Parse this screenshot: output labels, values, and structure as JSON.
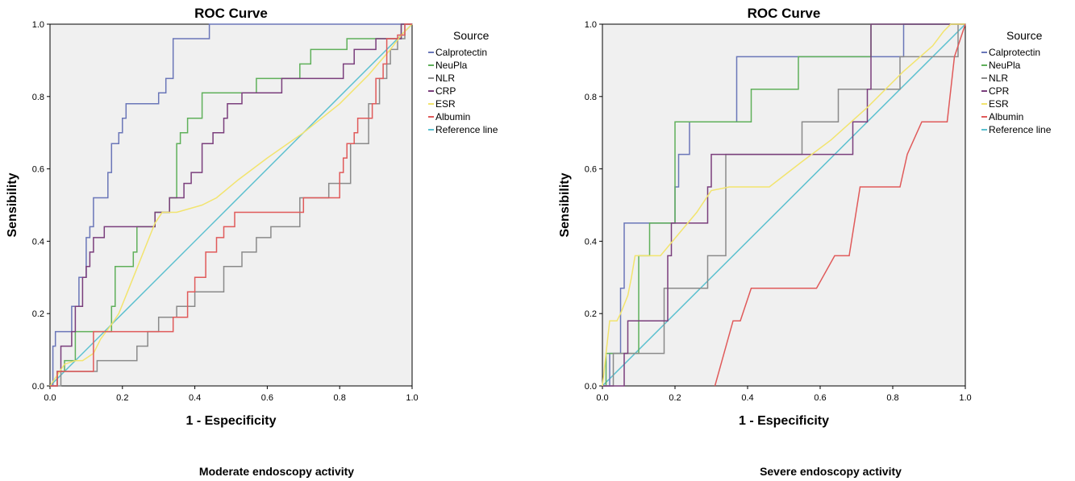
{
  "chart_data": [
    {
      "type": "line",
      "title": "ROC Curve",
      "xlabel": "1 - Especificity",
      "ylabel": "Sensibility",
      "caption": "Moderate endoscopy activity",
      "xlim": [
        0,
        1
      ],
      "ylim": [
        0,
        1
      ],
      "xticks": [
        "0.0",
        "0.2",
        "0.4",
        "0.6",
        "0.8",
        "1.0"
      ],
      "yticks": [
        "0.0",
        "0.2",
        "0.4",
        "0.6",
        "0.8",
        "1.0"
      ],
      "grid": false,
      "legend": {
        "title": "Source",
        "position": "right",
        "entries": [
          "Calprotectin",
          "NeuPla",
          "NLR",
          "CRP",
          "ESR",
          "Albumin",
          "Reference line"
        ]
      },
      "series": [
        {
          "name": "Calprotectin",
          "color": "#6a76b8",
          "x": [
            0,
            0.008,
            0.008,
            0.015,
            0.015,
            0.06,
            0.06,
            0.08,
            0.08,
            0.1,
            0.1,
            0.11,
            0.11,
            0.12,
            0.12,
            0.16,
            0.16,
            0.17,
            0.17,
            0.19,
            0.19,
            0.2,
            0.2,
            0.21,
            0.21,
            0.22,
            0.22,
            0.3,
            0.3,
            0.32,
            0.32,
            0.34,
            0.34,
            0.36,
            0.36,
            0.44,
            0.44,
            1.0
          ],
          "y": [
            0,
            0,
            0.11,
            0.11,
            0.15,
            0.15,
            0.22,
            0.22,
            0.3,
            0.3,
            0.41,
            0.41,
            0.44,
            0.44,
            0.52,
            0.52,
            0.59,
            0.59,
            0.67,
            0.67,
            0.7,
            0.7,
            0.74,
            0.74,
            0.78,
            0.78,
            0.78,
            0.78,
            0.81,
            0.81,
            0.85,
            0.85,
            0.96,
            0.96,
            0.96,
            0.96,
            1.0,
            1.0
          ]
        },
        {
          "name": "NeuPla",
          "color": "#5fb05a",
          "x": [
            0,
            0.02,
            0.02,
            0.04,
            0.04,
            0.07,
            0.07,
            0.17,
            0.17,
            0.18,
            0.18,
            0.23,
            0.23,
            0.24,
            0.24,
            0.29,
            0.29,
            0.33,
            0.33,
            0.35,
            0.35,
            0.36,
            0.36,
            0.37,
            0.37,
            0.38,
            0.38,
            0.42,
            0.42,
            0.57,
            0.57,
            0.69,
            0.69,
            0.72,
            0.72,
            0.82,
            0.82,
            0.94,
            0.94,
            0.97,
            0.97,
            1.0
          ],
          "y": [
            0,
            0,
            0.04,
            0.04,
            0.07,
            0.07,
            0.15,
            0.15,
            0.22,
            0.22,
            0.33,
            0.33,
            0.37,
            0.37,
            0.44,
            0.44,
            0.48,
            0.48,
            0.52,
            0.52,
            0.67,
            0.67,
            0.7,
            0.7,
            0.7,
            0.7,
            0.74,
            0.74,
            0.81,
            0.81,
            0.85,
            0.85,
            0.89,
            0.89,
            0.93,
            0.93,
            0.96,
            0.96,
            0.96,
            0.96,
            1.0,
            1.0
          ]
        },
        {
          "name": "NLR",
          "color": "#8a8a8a",
          "x": [
            0,
            0.03,
            0.03,
            0.05,
            0.05,
            0.06,
            0.06,
            0.13,
            0.13,
            0.17,
            0.17,
            0.24,
            0.24,
            0.27,
            0.27,
            0.29,
            0.29,
            0.3,
            0.3,
            0.33,
            0.33,
            0.35,
            0.35,
            0.4,
            0.4,
            0.48,
            0.48,
            0.53,
            0.53,
            0.57,
            0.57,
            0.61,
            0.61,
            0.69,
            0.69,
            0.77,
            0.77,
            0.83,
            0.83,
            0.88,
            0.88,
            0.91,
            0.91,
            0.93,
            0.93,
            0.94,
            0.94,
            0.96,
            0.96,
            0.98,
            0.98,
            1.0
          ],
          "y": [
            0,
            0,
            0.04,
            0.04,
            0.04,
            0.04,
            0.04,
            0.04,
            0.07,
            0.07,
            0.07,
            0.07,
            0.11,
            0.11,
            0.15,
            0.15,
            0.15,
            0.15,
            0.19,
            0.19,
            0.19,
            0.19,
            0.22,
            0.22,
            0.26,
            0.26,
            0.33,
            0.33,
            0.37,
            0.37,
            0.41,
            0.41,
            0.44,
            0.44,
            0.52,
            0.52,
            0.56,
            0.56,
            0.67,
            0.67,
            0.78,
            0.78,
            0.85,
            0.85,
            0.89,
            0.89,
            0.93,
            0.93,
            0.96,
            0.96,
            1.0,
            1.0
          ]
        },
        {
          "name": "CRP",
          "color": "#7a3e7c",
          "x": [
            0,
            0.02,
            0.02,
            0.03,
            0.03,
            0.06,
            0.06,
            0.07,
            0.07,
            0.09,
            0.09,
            0.1,
            0.1,
            0.11,
            0.11,
            0.12,
            0.12,
            0.14,
            0.14,
            0.15,
            0.15,
            0.16,
            0.16,
            0.29,
            0.29,
            0.33,
            0.33,
            0.35,
            0.35,
            0.37,
            0.37,
            0.39,
            0.39,
            0.42,
            0.42,
            0.45,
            0.45,
            0.46,
            0.46,
            0.48,
            0.48,
            0.49,
            0.49,
            0.53,
            0.53,
            0.55,
            0.55,
            0.57,
            0.57,
            0.64,
            0.64,
            0.69,
            0.69,
            0.81,
            0.81,
            0.83,
            0.83,
            0.84,
            0.84,
            0.9,
            0.9,
            0.97,
            0.97,
            1.0
          ],
          "y": [
            0,
            0,
            0.04,
            0.04,
            0.11,
            0.11,
            0.15,
            0.15,
            0.22,
            0.22,
            0.3,
            0.3,
            0.33,
            0.33,
            0.37,
            0.37,
            0.41,
            0.41,
            0.41,
            0.41,
            0.44,
            0.44,
            0.44,
            0.44,
            0.48,
            0.48,
            0.52,
            0.52,
            0.52,
            0.52,
            0.56,
            0.56,
            0.59,
            0.59,
            0.67,
            0.67,
            0.7,
            0.7,
            0.7,
            0.7,
            0.74,
            0.74,
            0.78,
            0.78,
            0.81,
            0.81,
            0.81,
            0.81,
            0.81,
            0.81,
            0.85,
            0.85,
            0.85,
            0.85,
            0.89,
            0.89,
            0.89,
            0.89,
            0.93,
            0.93,
            0.96,
            0.96,
            1.0,
            1.0
          ]
        },
        {
          "name": "ESR",
          "color": "#f2e46e",
          "x": [
            0,
            0.04,
            0.07,
            0.09,
            0.12,
            0.14,
            0.17,
            0.19,
            0.23,
            0.25,
            0.27,
            0.29,
            0.31,
            0.33,
            0.35,
            0.42,
            0.46,
            0.52,
            0.6,
            0.7,
            0.8,
            0.88,
            0.94,
            0.97,
            1.0
          ],
          "y": [
            0,
            0.06,
            0.07,
            0.07,
            0.09,
            0.13,
            0.17,
            0.2,
            0.3,
            0.35,
            0.4,
            0.45,
            0.48,
            0.48,
            0.48,
            0.5,
            0.52,
            0.57,
            0.63,
            0.7,
            0.78,
            0.86,
            0.93,
            0.97,
            1.0
          ]
        },
        {
          "name": "Albumin",
          "color": "#e05a5a",
          "x": [
            0,
            0.02,
            0.02,
            0.12,
            0.12,
            0.32,
            0.32,
            0.34,
            0.34,
            0.38,
            0.38,
            0.4,
            0.4,
            0.43,
            0.43,
            0.46,
            0.46,
            0.48,
            0.48,
            0.49,
            0.49,
            0.51,
            0.51,
            0.54,
            0.54,
            0.7,
            0.7,
            0.8,
            0.8,
            0.81,
            0.81,
            0.82,
            0.82,
            0.84,
            0.84,
            0.85,
            0.85,
            0.89,
            0.89,
            0.9,
            0.9,
            0.92,
            0.92,
            0.93,
            0.93,
            0.96,
            0.96,
            0.98,
            0.98,
            1.0
          ],
          "y": [
            0,
            0,
            0.04,
            0.04,
            0.15,
            0.15,
            0.15,
            0.15,
            0.19,
            0.19,
            0.26,
            0.26,
            0.3,
            0.3,
            0.37,
            0.37,
            0.41,
            0.41,
            0.44,
            0.44,
            0.44,
            0.44,
            0.48,
            0.48,
            0.48,
            0.48,
            0.52,
            0.52,
            0.59,
            0.59,
            0.63,
            0.63,
            0.67,
            0.67,
            0.7,
            0.7,
            0.74,
            0.74,
            0.78,
            0.78,
            0.85,
            0.85,
            0.89,
            0.89,
            0.96,
            0.96,
            0.97,
            0.97,
            1.0,
            1.0
          ]
        },
        {
          "name": "Reference line",
          "color": "#5bc0cf",
          "x": [
            0,
            1
          ],
          "y": [
            0,
            1
          ]
        }
      ]
    },
    {
      "type": "line",
      "title": "ROC Curve",
      "xlabel": "1 - Especificity",
      "ylabel": "Sensibility",
      "caption": "Severe endoscopy activity",
      "xlim": [
        0,
        1
      ],
      "ylim": [
        0,
        1
      ],
      "xticks": [
        "0.0",
        "0.2",
        "0.4",
        "0.6",
        "0.8",
        "1.0"
      ],
      "yticks": [
        "0.0",
        "0.2",
        "0.4",
        "0.6",
        "0.8",
        "1.0"
      ],
      "grid": false,
      "legend": {
        "title": "Source",
        "position": "right",
        "entries": [
          "Calprotectin",
          "NeuPla",
          "NLR",
          "CPR",
          "ESR",
          "Albumin",
          "Reference line"
        ]
      },
      "series": [
        {
          "name": "Calprotectin",
          "color": "#6a76b8",
          "x": [
            0,
            0.02,
            0.02,
            0.05,
            0.05,
            0.06,
            0.06,
            0.2,
            0.2,
            0.21,
            0.21,
            0.22,
            0.22,
            0.24,
            0.24,
            0.37,
            0.37,
            0.83,
            0.83,
            1.0
          ],
          "y": [
            0,
            0,
            0.09,
            0.09,
            0.27,
            0.27,
            0.45,
            0.45,
            0.55,
            0.55,
            0.64,
            0.64,
            0.64,
            0.64,
            0.73,
            0.73,
            0.91,
            0.91,
            1.0,
            1.0
          ]
        },
        {
          "name": "NeuPla",
          "color": "#5fb05a",
          "x": [
            0,
            0.01,
            0.01,
            0.09,
            0.09,
            0.1,
            0.1,
            0.13,
            0.13,
            0.2,
            0.2,
            0.32,
            0.32,
            0.37,
            0.37,
            0.41,
            0.41,
            0.54,
            0.54,
            0.74,
            0.74,
            1.0
          ],
          "y": [
            0,
            0,
            0.09,
            0.09,
            0.09,
            0.09,
            0.36,
            0.36,
            0.45,
            0.45,
            0.73,
            0.73,
            0.73,
            0.73,
            0.73,
            0.73,
            0.82,
            0.82,
            0.91,
            0.91,
            1.0,
            1.0
          ]
        },
        {
          "name": "NLR",
          "color": "#8a8a8a",
          "x": [
            0,
            0.03,
            0.03,
            0.17,
            0.17,
            0.28,
            0.28,
            0.29,
            0.29,
            0.32,
            0.32,
            0.34,
            0.34,
            0.35,
            0.35,
            0.55,
            0.55,
            0.65,
            0.65,
            0.82,
            0.82,
            0.91,
            0.91,
            0.98,
            0.98,
            1.0
          ],
          "y": [
            0,
            0,
            0.09,
            0.09,
            0.27,
            0.27,
            0.27,
            0.27,
            0.36,
            0.36,
            0.36,
            0.36,
            0.64,
            0.64,
            0.64,
            0.64,
            0.73,
            0.73,
            0.82,
            0.82,
            0.91,
            0.91,
            0.91,
            0.91,
            1.0,
            1.0
          ]
        },
        {
          "name": "CPR",
          "color": "#7a3e7c",
          "x": [
            0,
            0.06,
            0.06,
            0.07,
            0.07,
            0.09,
            0.09,
            0.18,
            0.18,
            0.19,
            0.19,
            0.29,
            0.29,
            0.3,
            0.3,
            0.31,
            0.31,
            0.65,
            0.65,
            0.69,
            0.69,
            0.73,
            0.73,
            0.74,
            0.74,
            0.77,
            0.77,
            0.82,
            0.82,
            1.0
          ],
          "y": [
            0,
            0,
            0.09,
            0.09,
            0.18,
            0.18,
            0.18,
            0.18,
            0.36,
            0.36,
            0.45,
            0.45,
            0.55,
            0.55,
            0.64,
            0.64,
            0.64,
            0.64,
            0.64,
            0.64,
            0.73,
            0.73,
            0.82,
            0.82,
            1.0,
            1.0,
            1.0,
            1.0,
            1.0,
            1.0
          ]
        },
        {
          "name": "ESR",
          "color": "#f2e46e",
          "x": [
            0,
            0.02,
            0.04,
            0.05,
            0.07,
            0.08,
            0.09,
            0.16,
            0.21,
            0.26,
            0.3,
            0.35,
            0.41,
            0.46,
            0.55,
            0.63,
            0.73,
            0.83,
            0.91,
            0.94,
            0.96,
            1.0
          ],
          "y": [
            0,
            0.18,
            0.18,
            0.2,
            0.25,
            0.3,
            0.36,
            0.36,
            0.42,
            0.48,
            0.54,
            0.55,
            0.55,
            0.55,
            0.62,
            0.68,
            0.77,
            0.87,
            0.94,
            0.98,
            1.0,
            1.0
          ]
        },
        {
          "name": "Albumin",
          "color": "#e05a5a",
          "x": [
            0.31,
            0.36,
            0.36,
            0.38,
            0.38,
            0.41,
            0.41,
            0.59,
            0.59,
            0.64,
            0.64,
            0.68,
            0.68,
            0.71,
            0.71,
            0.82,
            0.82,
            0.84,
            0.84,
            0.88,
            0.88,
            0.95,
            0.95,
            0.96,
            0.96,
            0.97,
            0.97,
            1.0
          ],
          "y": [
            0,
            0.18,
            0.18,
            0.18,
            0.18,
            0.27,
            0.27,
            0.27,
            0.27,
            0.36,
            0.36,
            0.36,
            0.36,
            0.55,
            0.55,
            0.55,
            0.55,
            0.64,
            0.64,
            0.73,
            0.73,
            0.73,
            0.73,
            0.82,
            0.82,
            0.91,
            0.91,
            1.0
          ]
        },
        {
          "name": "Reference line",
          "color": "#5bc0cf",
          "x": [
            0,
            1
          ],
          "y": [
            0,
            1
          ]
        }
      ]
    }
  ]
}
